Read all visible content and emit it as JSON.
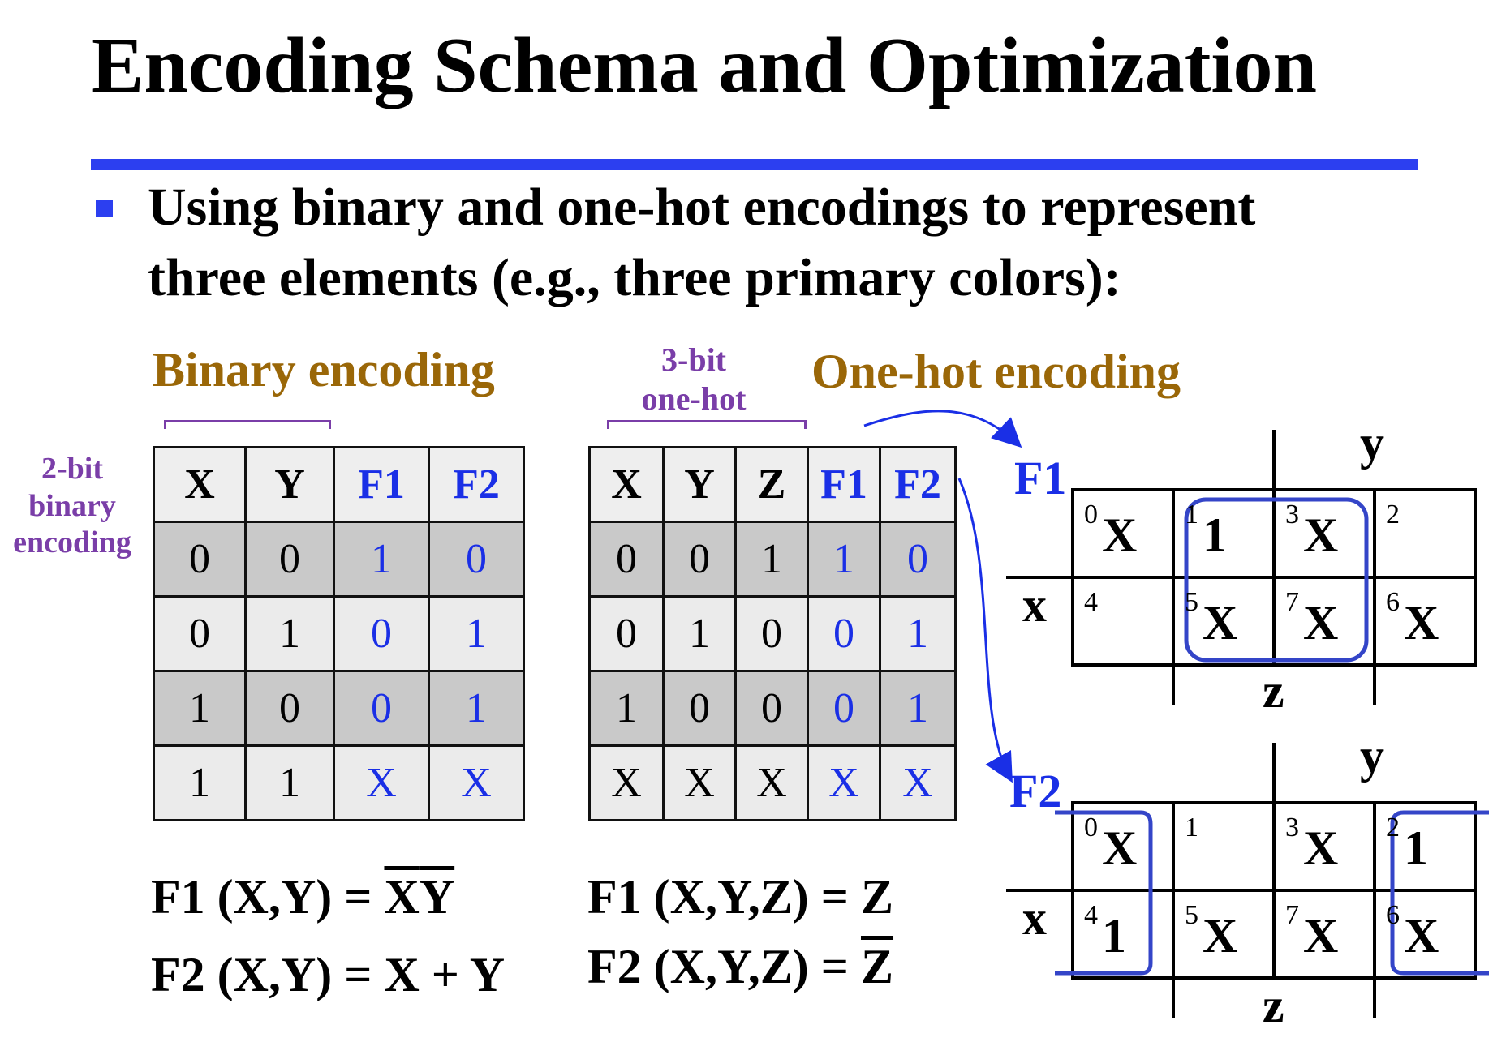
{
  "slide": {
    "title": "Encoding Schema and Optimization",
    "bullet_line1": "Using binary and one-hot encodings to represent",
    "bullet_line2": "three elements (e.g., three primary colors):"
  },
  "colors": {
    "accent_rule": "#2c3ff0",
    "heading_gold": "#9a6708",
    "annotation_purple": "#7a3ea8",
    "output_blue": "#1a2fe6"
  },
  "binary": {
    "heading": "Binary encoding",
    "side_label": [
      "2-bit",
      "binary",
      "encoding"
    ],
    "headers": [
      "X",
      "Y",
      "F1",
      "F2"
    ],
    "rows": [
      [
        "0",
        "0",
        "1",
        "0"
      ],
      [
        "0",
        "1",
        "0",
        "1"
      ],
      [
        "1",
        "0",
        "0",
        "1"
      ],
      [
        "1",
        "1",
        "X",
        "X"
      ]
    ],
    "eq1_lhs": "F1 (X,Y) = ",
    "eq1_a": "X",
    "eq1_b": "Y",
    "eq2": "F2 (X,Y) = X + Y"
  },
  "onehot": {
    "heading": "One-hot encoding",
    "brace_label": [
      "3-bit",
      "one-hot"
    ],
    "headers": [
      "X",
      "Y",
      "Z",
      "F1",
      "F2"
    ],
    "rows": [
      [
        "0",
        "0",
        "1",
        "1",
        "0"
      ],
      [
        "0",
        "1",
        "0",
        "0",
        "1"
      ],
      [
        "1",
        "0",
        "0",
        "0",
        "1"
      ],
      [
        "X",
        "X",
        "X",
        "X",
        "X"
      ]
    ],
    "eq1": "F1 (X,Y,Z) = Z",
    "eq2_lhs": "F2 (X,Y,Z) = ",
    "eq2_bar": "Z"
  },
  "kmaps": [
    {
      "label": "F1",
      "var_top": "y",
      "var_left": "x",
      "var_bottom": "z",
      "cells": [
        {
          "idx": "0",
          "val": "X"
        },
        {
          "idx": "1",
          "val": "1"
        },
        {
          "idx": "3",
          "val": "X"
        },
        {
          "idx": "2",
          "val": ""
        },
        {
          "idx": "4",
          "val": ""
        },
        {
          "idx": "5",
          "val": "X"
        },
        {
          "idx": "7",
          "val": "X"
        },
        {
          "idx": "6",
          "val": "X"
        }
      ]
    },
    {
      "label": "F2",
      "var_top": "y",
      "var_left": "x",
      "var_bottom": "z",
      "cells": [
        {
          "idx": "0",
          "val": "X"
        },
        {
          "idx": "1",
          "val": ""
        },
        {
          "idx": "3",
          "val": "X"
        },
        {
          "idx": "2",
          "val": "1"
        },
        {
          "idx": "4",
          "val": "1"
        },
        {
          "idx": "5",
          "val": "X"
        },
        {
          "idx": "7",
          "val": "X"
        },
        {
          "idx": "6",
          "val": "X"
        }
      ]
    }
  ]
}
